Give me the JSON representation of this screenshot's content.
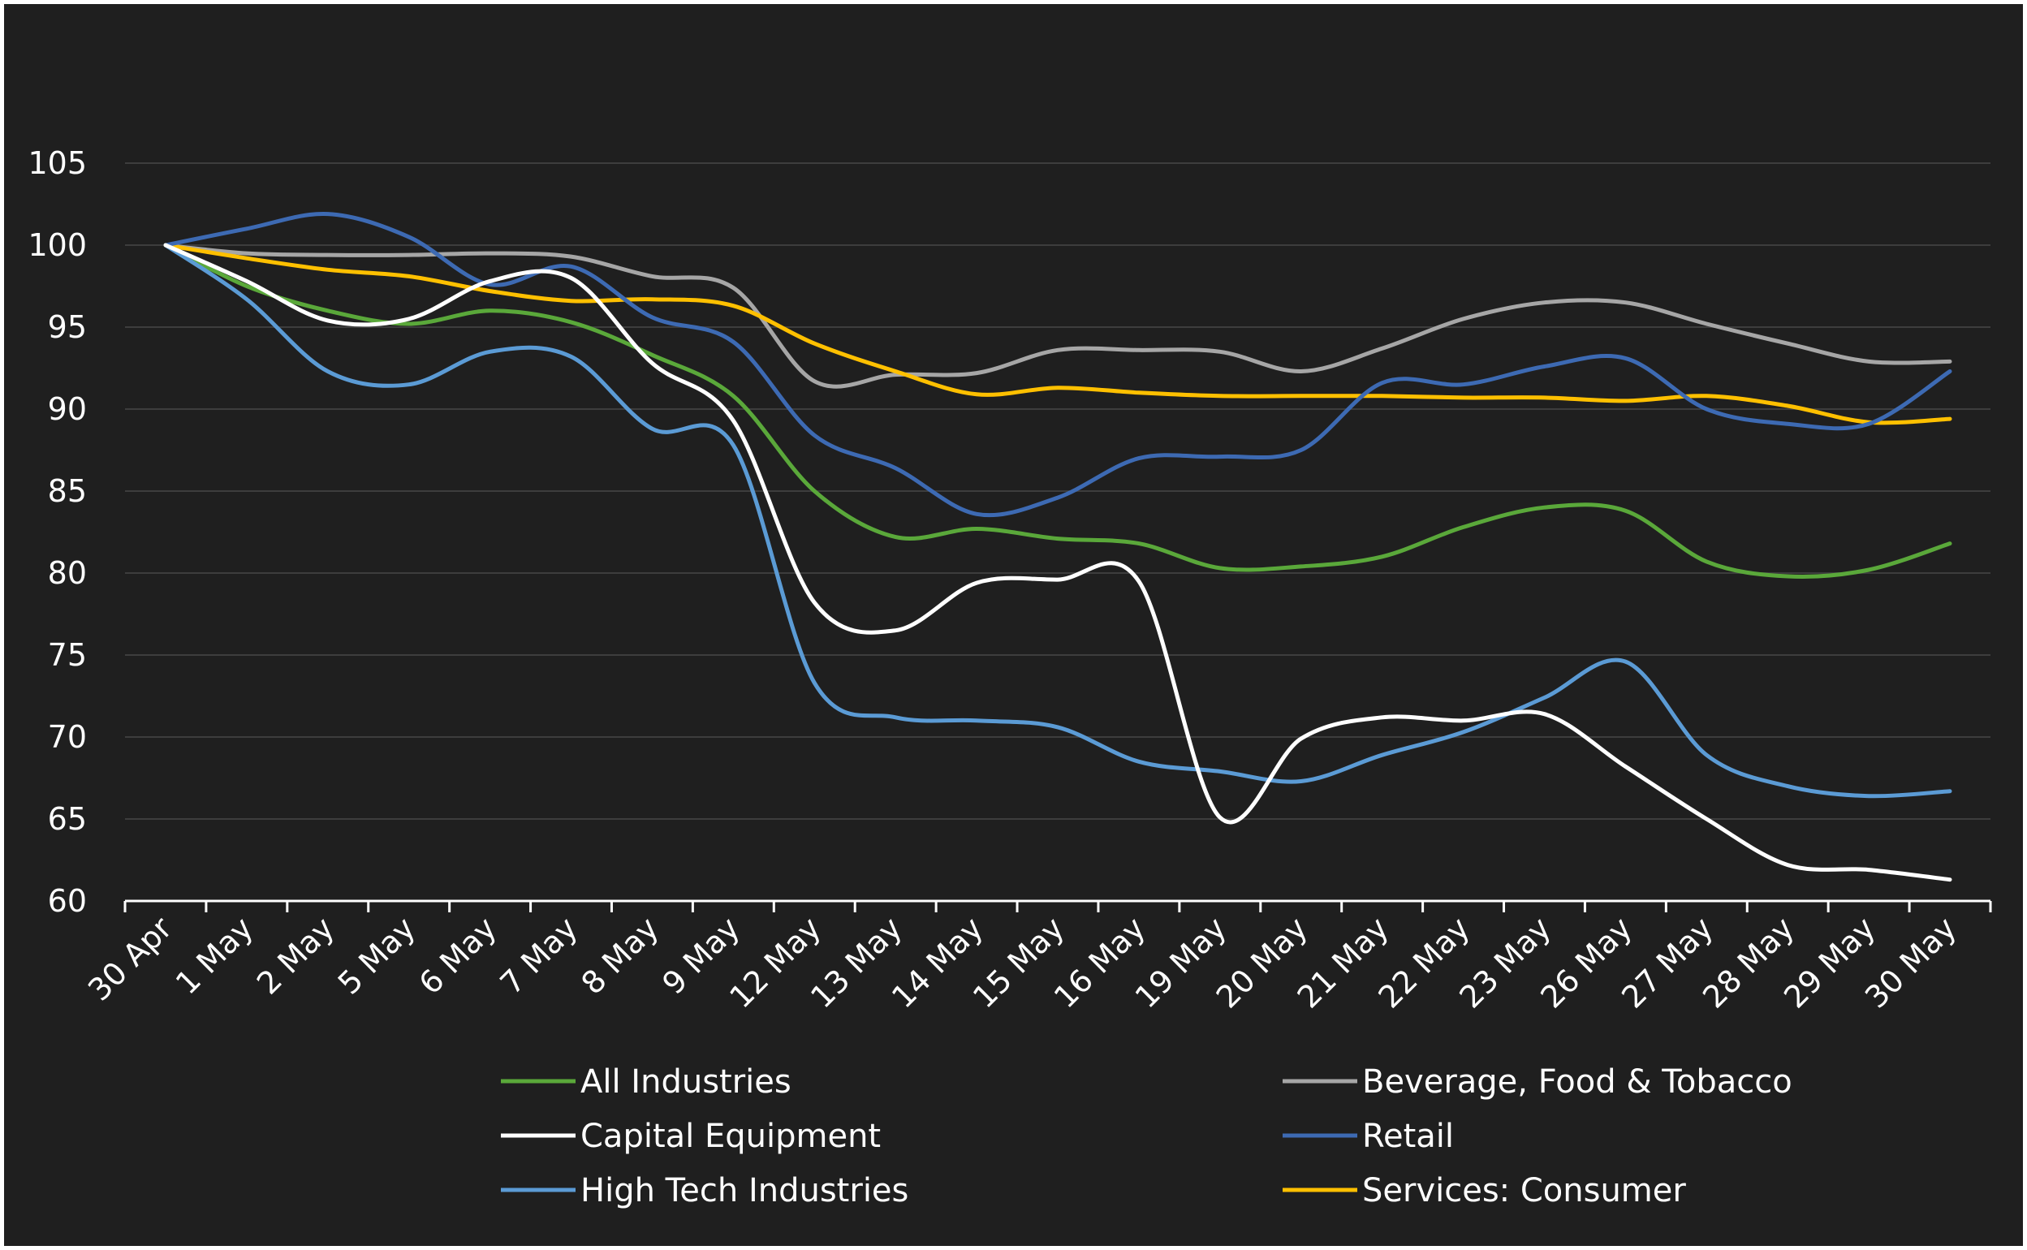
{
  "chart_data": {
    "type": "line",
    "title": "",
    "xlabel": "",
    "ylabel": "",
    "ylim": [
      60,
      105
    ],
    "yticks": [
      60,
      65,
      70,
      75,
      80,
      85,
      90,
      95,
      100,
      105
    ],
    "grid": true,
    "legend_position": "bottom",
    "categories": [
      "30 Apr",
      "1 May",
      "2 May",
      "5 May",
      "6 May",
      "7 May",
      "8 May",
      "9 May",
      "12 May",
      "13 May",
      "14 May",
      "15 May",
      "16 May",
      "19 May",
      "20 May",
      "21 May",
      "22 May",
      "23 May",
      "26 May",
      "27 May",
      "28 May",
      "29 May",
      "30 May"
    ],
    "series": [
      {
        "name": "All Industries",
        "color": "#5aa83a",
        "values": [
          100,
          97.5,
          96.0,
          95.2,
          96.0,
          95.3,
          93.3,
          90.8,
          85.0,
          82.2,
          82.7,
          82.1,
          81.8,
          80.3,
          80.4,
          81.0,
          82.8,
          84.0,
          83.8,
          80.7,
          79.8,
          80.2,
          81.8
        ]
      },
      {
        "name": "Beverage, Food & Tobacco",
        "color": "#a6a6a6",
        "values": [
          100,
          99.5,
          99.4,
          99.4,
          99.5,
          99.3,
          98.1,
          97.4,
          91.7,
          92.1,
          92.2,
          93.6,
          93.6,
          93.5,
          92.3,
          93.7,
          95.5,
          96.5,
          96.5,
          95.2,
          94.0,
          92.9,
          92.9
        ]
      },
      {
        "name": "Capital Equipment",
        "color": "#ffffff",
        "values": [
          100,
          97.8,
          95.4,
          95.5,
          97.8,
          98.0,
          92.8,
          89.3,
          78.2,
          76.5,
          79.4,
          79.6,
          79.5,
          65.1,
          69.9,
          71.2,
          71.0,
          71.4,
          68.2,
          65.0,
          62.2,
          61.9,
          61.3
        ]
      },
      {
        "name": "Retail",
        "color": "#3d6ab3",
        "values": [
          100,
          101.0,
          101.9,
          100.5,
          97.6,
          98.7,
          95.6,
          94.1,
          88.4,
          86.4,
          83.6,
          84.6,
          87.0,
          87.1,
          87.5,
          91.6,
          91.5,
          92.6,
          93.1,
          90.0,
          89.1,
          89.1,
          92.3
        ]
      },
      {
        "name": "High Tech Industries",
        "color": "#5b9bd5",
        "values": [
          100,
          96.7,
          92.3,
          91.5,
          93.5,
          93.2,
          88.8,
          87.8,
          73.3,
          71.2,
          71.0,
          70.6,
          68.5,
          67.9,
          67.3,
          68.9,
          70.3,
          72.4,
          74.6,
          68.9,
          67.0,
          66.4,
          66.7
        ]
      },
      {
        "name": "Services: Consumer",
        "color": "#ffc000",
        "values": [
          100,
          99.2,
          98.5,
          98.1,
          97.2,
          96.6,
          96.7,
          96.3,
          94.0,
          92.3,
          90.9,
          91.3,
          91.0,
          90.8,
          90.8,
          90.8,
          90.7,
          90.7,
          90.5,
          90.8,
          90.2,
          89.2,
          89.4
        ]
      }
    ]
  }
}
